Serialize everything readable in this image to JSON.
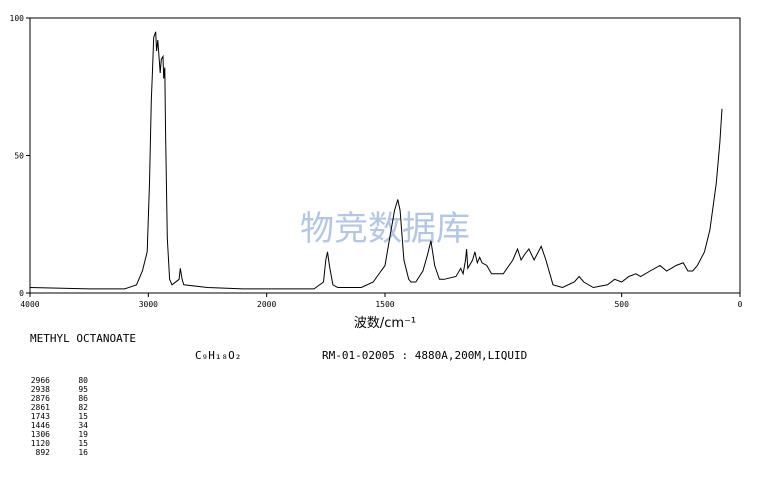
{
  "chart_data": {
    "type": "line",
    "title": "METHYL OCTANOATE",
    "formula": "C₉H₁₈O₂",
    "sample_info": "RM-01-02005 : 4880A,200M,LIQUID",
    "x_label": "波数/cm⁻¹",
    "watermark": "物竞数据库",
    "color": "#000000",
    "xlim": [
      4000,
      0
    ],
    "xscale_break": 2000,
    "xticks": [
      4000,
      3000,
      2000,
      1500,
      500,
      0
    ],
    "ylim": [
      0,
      100
    ],
    "yticks": [
      0,
      50,
      100
    ],
    "x": [
      4000,
      3500,
      3200,
      3100,
      3050,
      3010,
      2990,
      2975,
      2966,
      2955,
      2938,
      2930,
      2920,
      2900,
      2890,
      2876,
      2870,
      2861,
      2855,
      2840,
      2820,
      2800,
      2740,
      2730,
      2715,
      2700,
      2500,
      2200,
      2000,
      1800,
      1760,
      1750,
      1743,
      1735,
      1720,
      1700,
      1600,
      1550,
      1500,
      1480,
      1460,
      1446,
      1436,
      1420,
      1400,
      1390,
      1370,
      1340,
      1320,
      1306,
      1290,
      1270,
      1250,
      1200,
      1180,
      1170,
      1160,
      1155,
      1150,
      1130,
      1120,
      1110,
      1100,
      1090,
      1070,
      1050,
      1000,
      960,
      940,
      925,
      910,
      892,
      870,
      840,
      820,
      790,
      750,
      700,
      680,
      660,
      620,
      560,
      530,
      500,
      470,
      440,
      420,
      380,
      338,
      310,
      290,
      270,
      240,
      220,
      200,
      180,
      150,
      127,
      100,
      85,
      76
    ],
    "values": [
      2,
      1.5,
      1.5,
      3,
      8,
      15,
      40,
      70,
      80,
      93,
      95,
      88,
      92,
      80,
      85,
      86,
      78,
      82,
      60,
      20,
      5,
      3,
      5,
      9,
      5,
      3,
      2,
      1.5,
      1.5,
      1.5,
      4,
      12,
      15,
      10,
      3,
      2,
      2,
      4,
      10,
      20,
      30,
      34,
      30,
      12,
      5,
      4,
      4,
      8,
      14,
      19,
      10,
      5,
      5,
      6,
      9,
      7,
      12,
      16,
      9,
      12,
      15,
      11,
      13,
      11,
      10,
      7,
      7,
      12,
      16,
      12,
      14,
      16,
      12,
      17,
      12,
      3,
      2,
      4,
      6,
      4,
      2,
      3,
      5,
      4,
      6,
      7,
      6,
      8,
      10,
      8,
      9,
      10,
      11,
      8,
      8,
      10,
      15,
      23,
      40,
      55,
      67
    ],
    "peaks": [
      [
        2966,
        80
      ],
      [
        2938,
        95
      ],
      [
        2876,
        86
      ],
      [
        2861,
        82
      ],
      [
        1743,
        15
      ],
      [
        1446,
        34
      ],
      [
        1306,
        19
      ],
      [
        1120,
        15
      ],
      [
        892,
        16
      ]
    ]
  }
}
